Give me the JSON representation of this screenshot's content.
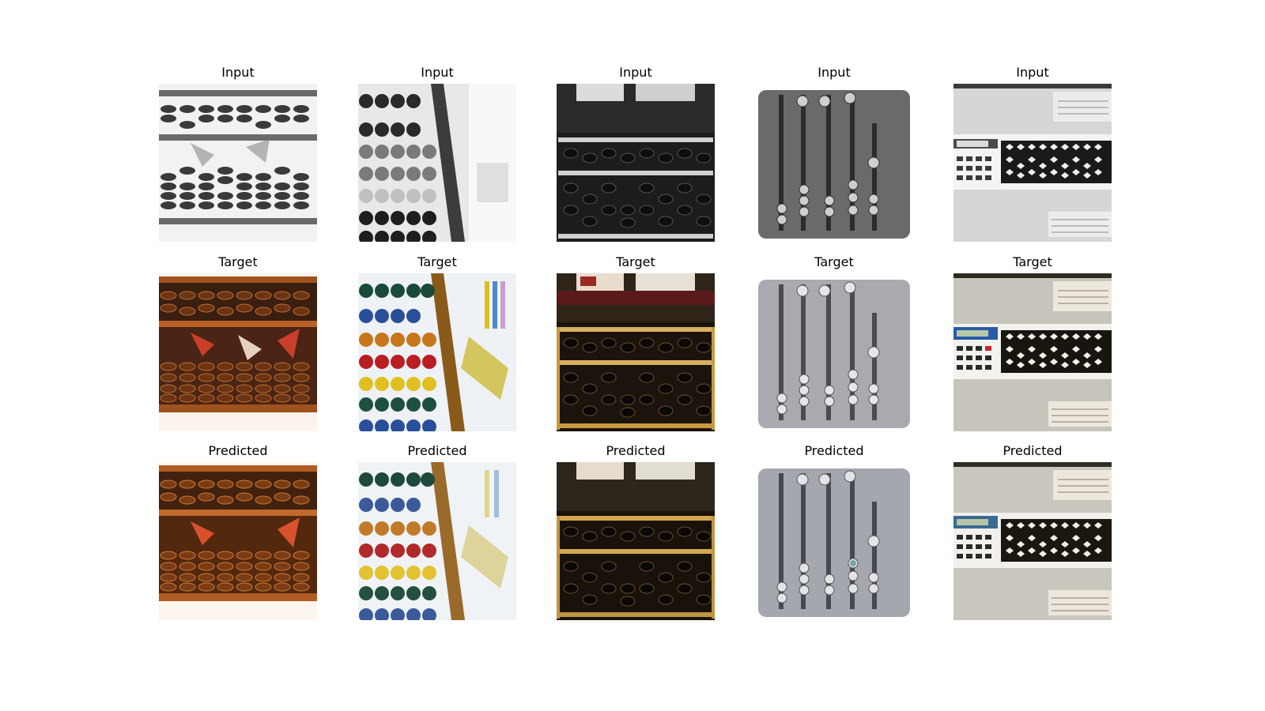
{
  "figure": {
    "columns": [
      {
        "subject": "suanpan abacus on white background",
        "row_titles": [
          "Input",
          "Target",
          "Predicted"
        ]
      },
      {
        "subject": "colorful school abacus in classroom",
        "row_titles": [
          "Input",
          "Target",
          "Predicted"
        ]
      },
      {
        "subject": "wooden abacus with book behind",
        "row_titles": [
          "Input",
          "Target",
          "Predicted"
        ]
      },
      {
        "subject": "ancient engraved slot abacus",
        "row_titles": [
          "Input",
          "Target",
          "Predicted"
        ]
      },
      {
        "subject": "calculator-abacus museum exhibit",
        "row_titles": [
          "Input",
          "Target",
          "Predicted"
        ]
      }
    ],
    "row_titles": [
      "Input",
      "Target",
      "Predicted"
    ],
    "colors": {
      "wood": "#a0521e",
      "wood_dark": "#5a2e10",
      "bead_brown": "#6b3414",
      "bead_colors": [
        "#1a4a3a",
        "#2a4f9a",
        "#c8761c",
        "#b81e22",
        "#e0c020",
        "#1d5040"
      ],
      "gray_bg": "#c8c8c8",
      "metal": "#a9aab0"
    }
  }
}
